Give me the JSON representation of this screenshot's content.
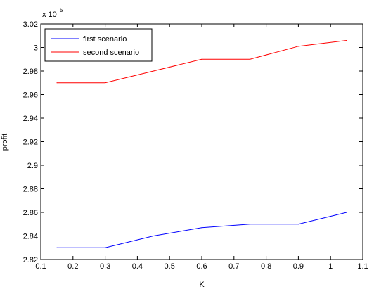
{
  "chart_data": {
    "type": "line",
    "x": [
      0.15,
      0.3,
      0.45,
      0.6,
      0.75,
      0.9,
      1.05
    ],
    "series": [
      {
        "name": "first scenario",
        "color": "#0000ff",
        "values": [
          2.83,
          2.83,
          2.84,
          2.847,
          2.85,
          2.85,
          2.86
        ]
      },
      {
        "name": "second scenario",
        "color": "#ff0000",
        "values": [
          2.97,
          2.97,
          2.98,
          2.99,
          2.99,
          3.001,
          3.006
        ]
      }
    ],
    "xlabel": "K",
    "ylabel": "profit",
    "xlim": [
      0.1,
      1.1
    ],
    "ylim": [
      2.82,
      3.02
    ],
    "xticks": [
      "0.1",
      "0.2",
      "0.3",
      "0.4",
      "0.5",
      "0.6",
      "0.7",
      "0.8",
      "0.9",
      "1",
      "1.1"
    ],
    "yticks": [
      "2.82",
      "2.84",
      "2.86",
      "2.88",
      "2.9",
      "2.92",
      "2.94",
      "2.96",
      "2.98",
      "3",
      "3.02"
    ],
    "exponent_label": {
      "base": "x 10",
      "power": "5"
    },
    "legend_position": "top-left",
    "grid": false
  }
}
